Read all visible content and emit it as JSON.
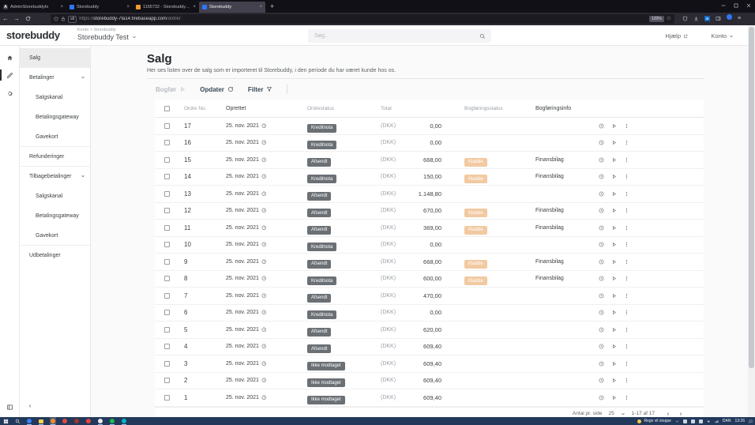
{
  "browser": {
    "tabs": [
      {
        "title": "AdminStorebuddyIo",
        "icon": "letter-a-favicon",
        "icon_text": "A",
        "icon_color": "#3a3a44",
        "active": false
      },
      {
        "title": "Storebuddy",
        "icon": "storebuddy-favicon",
        "icon_text": "",
        "icon_color": "#2f76f6",
        "active": false
      },
      {
        "title": "1165732 - Storebuddy Test (M...",
        "icon": "orange-favicon",
        "icon_text": "",
        "icon_color": "#f09a2e",
        "active": false
      },
      {
        "title": "Storebuddy",
        "icon": "storebuddy-favicon",
        "icon_text": "",
        "icon_color": "#2f76f6",
        "active": true
      }
    ],
    "url_prefix": "https://",
    "url_host": "storebuddy-7fa14.firebaseapp.com",
    "url_path": "/ordrer",
    "container_badge": "alt",
    "zoom_level": "120%"
  },
  "header": {
    "logo": "storebuddy",
    "breadcrumb": "Konto > Storebuddy",
    "account_name": "Storebuddy Test",
    "search_placeholder": "Søg...",
    "help_label": "Hjælp",
    "account_label": "Konto"
  },
  "sidebar": {
    "items": [
      {
        "label": "Salg",
        "active": true,
        "divider": true
      },
      {
        "label": "Betalinger",
        "chevron": true
      },
      {
        "label": "Salgskanal",
        "indent": true
      },
      {
        "label": "Betalingsgateway",
        "indent": true
      },
      {
        "label": "Gavekort",
        "indent": true,
        "divider": true
      },
      {
        "label": "Refunderinger",
        "divider": true
      },
      {
        "label": "Tilbagebetalinger",
        "chevron": true
      },
      {
        "label": "Salgskanal",
        "indent": true
      },
      {
        "label": "Betalingsgateway",
        "indent": true
      },
      {
        "label": "Gavekort",
        "indent": true,
        "divider": true
      },
      {
        "label": "Udbetalinger"
      }
    ]
  },
  "main": {
    "title": "Salg",
    "subtitle": "Her ses listen over de salg som er importeret til Storebuddy, i den periode du har været kunde hos os.",
    "toolbar": {
      "post_label": "Bogfør",
      "refresh_label": "Opdater",
      "filter_label": "Filter"
    },
    "table": {
      "columns": [
        "Ordre No.",
        "Oprettet",
        "Ordrestatus",
        "Total",
        "Bogføringsstatus",
        "Bogføringsinfo"
      ],
      "currency": "(DKK)",
      "rows": [
        {
          "no": "17",
          "date": "25. nov. 2021",
          "status": "Kreditnota",
          "total": "0,00",
          "bstatus": "",
          "binfo": ""
        },
        {
          "no": "16",
          "date": "25. nov. 2021",
          "status": "Kreditnota",
          "total": "0,00",
          "bstatus": "",
          "binfo": ""
        },
        {
          "no": "15",
          "date": "25. nov. 2021",
          "status": "Afsendt",
          "total": "668,00",
          "bstatus": "Kladde",
          "binfo": "Finansbilag"
        },
        {
          "no": "14",
          "date": "25. nov. 2021",
          "status": "Kreditnota",
          "total": "150,00",
          "bstatus": "Kladde",
          "binfo": "Finansbilag"
        },
        {
          "no": "13",
          "date": "25. nov. 2021",
          "status": "Afsendt",
          "total": "1.148,80",
          "bstatus": "",
          "binfo": ""
        },
        {
          "no": "12",
          "date": "25. nov. 2021",
          "status": "Afsendt",
          "total": "670,00",
          "bstatus": "Kladde",
          "binfo": "Finansbilag"
        },
        {
          "no": "11",
          "date": "25. nov. 2021",
          "status": "Afsendt",
          "total": "369,00",
          "bstatus": "Kladde",
          "binfo": "Finansbilag"
        },
        {
          "no": "10",
          "date": "25. nov. 2021",
          "status": "Kreditnota",
          "total": "0,00",
          "bstatus": "",
          "binfo": ""
        },
        {
          "no": "9",
          "date": "25. nov. 2021",
          "status": "Afsendt",
          "total": "668,00",
          "bstatus": "Kladde",
          "binfo": "Finansbilag"
        },
        {
          "no": "8",
          "date": "25. nov. 2021",
          "status": "Kreditnota",
          "total": "600,00",
          "bstatus": "Kladde",
          "binfo": "Finansbilag"
        },
        {
          "no": "7",
          "date": "25. nov. 2021",
          "status": "Afsendt",
          "total": "470,00",
          "bstatus": "",
          "binfo": ""
        },
        {
          "no": "6",
          "date": "25. nov. 2021",
          "status": "Kreditnota",
          "total": "0,00",
          "bstatus": "",
          "binfo": ""
        },
        {
          "no": "5",
          "date": "25. nov. 2021",
          "status": "Afsendt",
          "total": "620,00",
          "bstatus": "",
          "binfo": ""
        },
        {
          "no": "4",
          "date": "25. nov. 2021",
          "status": "Afsendt",
          "total": "609,40",
          "bstatus": "",
          "binfo": ""
        },
        {
          "no": "3",
          "date": "25. nov. 2021",
          "status": "Ikke modtaget",
          "total": "609,40",
          "bstatus": "",
          "binfo": ""
        },
        {
          "no": "2",
          "date": "25. nov. 2021",
          "status": "Ikke modtaget",
          "total": "609,40",
          "bstatus": "",
          "binfo": ""
        },
        {
          "no": "1",
          "date": "25. nov. 2021",
          "status": "Ikke modtaget",
          "total": "609,40",
          "bstatus": "",
          "binfo": ""
        }
      ]
    },
    "pagination": {
      "per_page_label": "Antal pr. side",
      "per_page": "25",
      "range": "1-17 af 17"
    }
  },
  "taskbar": {
    "weather": "Regn vil stoppe",
    "language": "DAN",
    "time": "13:26",
    "apps": [
      {
        "name": "edge",
        "color": "#3b82f6",
        "active": true
      },
      {
        "name": "explorer",
        "color": "#ffd24a",
        "shape": "folder",
        "active": true
      },
      {
        "name": "firefox",
        "color": "#ff8b1f",
        "active": true,
        "highlight": true
      },
      {
        "name": "app-red",
        "color": "#e24840",
        "active": false
      },
      {
        "name": "app-darkred",
        "color": "#a2332b",
        "active": false
      },
      {
        "name": "app-red-2",
        "color": "#e8453c",
        "active": false
      },
      {
        "name": "app-light",
        "color": "#e9ebee",
        "active": true
      },
      {
        "name": "spotify",
        "color": "#1db954",
        "active": true
      },
      {
        "name": "teams",
        "color": "#00b7c3",
        "active": true
      }
    ]
  },
  "colors": {
    "badge_grey": "#6b7075",
    "badge_orange": "#f2c9a1",
    "taskbar_bg": "#22395c",
    "active_tab_bg": "#42414d",
    "favicon_blue": "#2f76f6"
  }
}
